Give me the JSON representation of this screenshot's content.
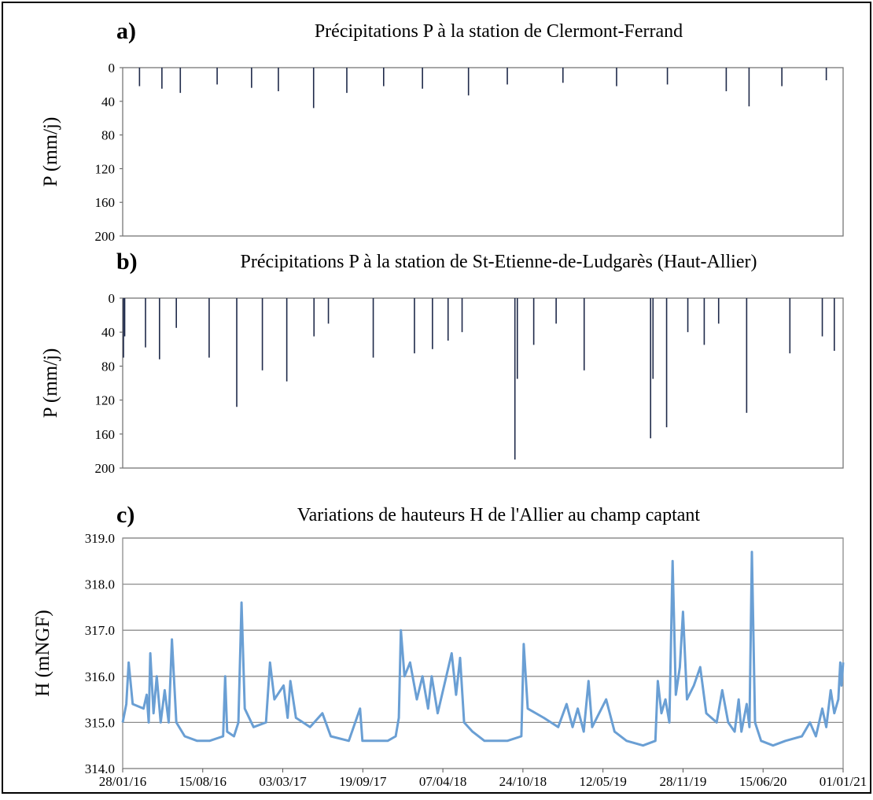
{
  "chart_data": [
    {
      "type": "bar",
      "label": "a)",
      "title": "Précipitations P à la station de Clermont-Ferrand",
      "y_label": "P (mm/j)",
      "y_inverted": true,
      "color": "#1f2a4a",
      "xlim": [
        "2016-01-28",
        "2021-01-01"
      ],
      "ylim": [
        0,
        200
      ],
      "yticks": [
        0,
        40,
        80,
        120,
        160,
        200
      ],
      "x": [
        "2016-03-10",
        "2016-05-05",
        "2016-06-20",
        "2016-09-20",
        "2016-12-15",
        "2017-02-20",
        "2017-05-19",
        "2017-08-10",
        "2017-11-10",
        "2018-02-15",
        "2018-06-10",
        "2018-09-15",
        "2019-02-01",
        "2019-06-15",
        "2019-10-20",
        "2020-03-15",
        "2020-05-11",
        "2020-08-01",
        "2020-11-20"
      ],
      "values": [
        22,
        25,
        30,
        20,
        24,
        28,
        48,
        30,
        22,
        25,
        33,
        20,
        18,
        22,
        20,
        28,
        46,
        22,
        15
      ]
    },
    {
      "type": "bar",
      "label": "b)",
      "title": "Précipitations P à la station de St-Etienne-de-Ludgarès (Haut-Allier)",
      "y_label": "P (mm/j)",
      "y_inverted": true,
      "color": "#1f2a4a",
      "xlim": [
        "2016-01-28",
        "2021-01-01"
      ],
      "ylim": [
        0,
        200
      ],
      "yticks": [
        0,
        40,
        80,
        120,
        160,
        200
      ],
      "x": [
        "2016-01-30",
        "2016-02-02",
        "2016-03-25",
        "2016-04-29",
        "2016-06-10",
        "2016-08-31",
        "2016-11-08",
        "2017-01-11",
        "2017-03-13",
        "2017-05-20",
        "2017-06-25",
        "2017-10-15",
        "2018-01-26",
        "2018-03-12",
        "2018-04-20",
        "2018-05-25",
        "2018-10-04",
        "2018-10-10",
        "2018-11-20",
        "2019-01-15",
        "2019-03-26",
        "2019-09-08",
        "2019-09-14",
        "2019-10-18",
        "2019-12-10",
        "2020-01-20",
        "2020-02-25",
        "2020-05-05",
        "2020-08-21",
        "2020-11-10",
        "2020-12-10"
      ],
      "values": [
        70,
        45,
        58,
        72,
        35,
        70,
        128,
        85,
        98,
        45,
        30,
        70,
        65,
        60,
        50,
        40,
        190,
        95,
        55,
        30,
        85,
        165,
        95,
        152,
        40,
        55,
        30,
        135,
        65,
        45,
        62
      ]
    },
    {
      "type": "line",
      "label": "c)",
      "title": "Variations de hauteurs H de l'Allier au champ captant",
      "y_label": "H (mNGF)",
      "color": "#6a9fd4",
      "grid": true,
      "xlim": [
        "2016-01-28",
        "2021-01-01"
      ],
      "ylim": [
        314,
        319
      ],
      "yticks": [
        {
          "value": 314,
          "label": "314.0"
        },
        {
          "value": 315,
          "label": "315.0"
        },
        {
          "value": 316,
          "label": "316.0"
        },
        {
          "value": 317,
          "label": "317.0"
        },
        {
          "value": 318,
          "label": "318.0"
        },
        {
          "value": 319,
          "label": "319.0"
        }
      ],
      "xticks": [
        {
          "value": "2016-01-28",
          "label": "28/01/16"
        },
        {
          "value": "2016-08-15",
          "label": "15/08/16"
        },
        {
          "value": "2017-03-03",
          "label": "03/03/17"
        },
        {
          "value": "2017-09-19",
          "label": "19/09/17"
        },
        {
          "value": "2018-04-07",
          "label": "07/04/18"
        },
        {
          "value": "2018-10-24",
          "label": "24/10/18"
        },
        {
          "value": "2019-05-12",
          "label": "12/05/19"
        },
        {
          "value": "2019-11-28",
          "label": "28/11/19"
        },
        {
          "value": "2020-06-15",
          "label": "15/06/20"
        },
        {
          "value": "2021-01-01",
          "label": "01/01/21"
        }
      ],
      "x": [
        "2016-01-28",
        "2016-02-06",
        "2016-02-12",
        "2016-02-22",
        "2016-03-20",
        "2016-03-28",
        "2016-04-02",
        "2016-04-06",
        "2016-04-14",
        "2016-04-22",
        "2016-05-02",
        "2016-05-12",
        "2016-05-22",
        "2016-05-30",
        "2016-06-10",
        "2016-07-01",
        "2016-08-01",
        "2016-09-01",
        "2016-10-05",
        "2016-10-10",
        "2016-10-15",
        "2016-11-01",
        "2016-11-12",
        "2016-11-20",
        "2016-11-28",
        "2016-12-20",
        "2017-01-20",
        "2017-01-30",
        "2017-02-10",
        "2017-03-05",
        "2017-03-15",
        "2017-03-22",
        "2017-04-05",
        "2017-05-10",
        "2017-06-10",
        "2017-07-01",
        "2017-08-15",
        "2017-09-12",
        "2017-09-18",
        "2017-11-20",
        "2017-12-10",
        "2017-12-18",
        "2017-12-23",
        "2018-01-01",
        "2018-01-15",
        "2018-02-01",
        "2018-02-15",
        "2018-03-01",
        "2018-03-10",
        "2018-03-25",
        "2018-04-29",
        "2018-05-10",
        "2018-05-20",
        "2018-05-30",
        "2018-06-20",
        "2018-07-20",
        "2018-09-15",
        "2018-10-20",
        "2018-10-26",
        "2018-11-05",
        "2018-12-15",
        "2019-01-20",
        "2019-02-10",
        "2019-02-25",
        "2019-03-10",
        "2019-03-25",
        "2019-04-06",
        "2019-04-15",
        "2019-05-20",
        "2019-06-10",
        "2019-07-10",
        "2019-08-20",
        "2019-09-20",
        "2019-09-26",
        "2019-10-05",
        "2019-10-15",
        "2019-10-25",
        "2019-11-02",
        "2019-11-10",
        "2019-11-20",
        "2019-11-28",
        "2019-12-08",
        "2019-12-25",
        "2020-01-10",
        "2020-01-25",
        "2020-02-20",
        "2020-03-05",
        "2020-03-20",
        "2020-04-05",
        "2020-04-15",
        "2020-04-22",
        "2020-05-05",
        "2020-05-12",
        "2020-05-18",
        "2020-05-26",
        "2020-06-10",
        "2020-07-10",
        "2020-08-10",
        "2020-09-20",
        "2020-10-10",
        "2020-10-25",
        "2020-11-10",
        "2020-11-20",
        "2020-12-01",
        "2020-12-10",
        "2020-12-20",
        "2020-12-25",
        "2020-12-28",
        "2021-01-01"
      ],
      "values": [
        315.0,
        315.4,
        316.3,
        315.4,
        315.3,
        315.6,
        315.0,
        316.5,
        315.2,
        316.0,
        315.0,
        315.7,
        315.0,
        316.8,
        315.0,
        314.7,
        314.6,
        314.6,
        314.7,
        316.0,
        314.8,
        314.7,
        315.0,
        317.6,
        315.3,
        314.9,
        315.0,
        316.3,
        315.5,
        315.8,
        315.1,
        315.9,
        315.1,
        314.9,
        315.2,
        314.7,
        314.6,
        315.3,
        314.6,
        314.6,
        314.7,
        315.1,
        317.0,
        316.0,
        316.3,
        315.5,
        316.0,
        315.3,
        316.0,
        315.2,
        316.5,
        315.6,
        316.4,
        315.0,
        314.8,
        314.6,
        314.6,
        314.7,
        316.7,
        315.3,
        315.1,
        314.9,
        315.4,
        314.9,
        315.3,
        314.8,
        315.9,
        314.9,
        315.5,
        314.8,
        314.6,
        314.5,
        314.6,
        315.9,
        315.2,
        315.5,
        315.0,
        318.5,
        315.6,
        316.2,
        317.4,
        315.5,
        315.8,
        316.2,
        315.2,
        315.0,
        315.7,
        315.0,
        314.8,
        315.5,
        314.8,
        315.4,
        314.9,
        318.7,
        315.0,
        314.6,
        314.5,
        314.6,
        314.7,
        315.0,
        314.7,
        315.3,
        314.9,
        315.7,
        315.2,
        315.5,
        316.3,
        315.8,
        316.3
      ]
    }
  ]
}
